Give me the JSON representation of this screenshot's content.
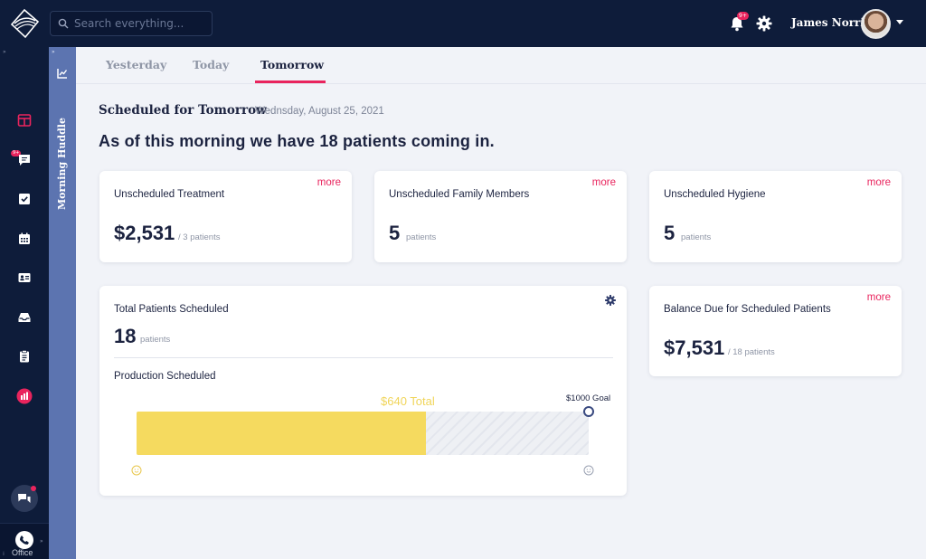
{
  "header": {
    "search_placeholder": "Search everything...",
    "notification_badge": "9+",
    "user_name": "James Norris"
  },
  "sidebar": {
    "message_badge": "9+",
    "office_label": "Office"
  },
  "huddle": {
    "label": "Morning Huddle"
  },
  "tabs": [
    {
      "label": "Yesterday"
    },
    {
      "label": "Today"
    },
    {
      "label": "Tomorrow",
      "active": true
    }
  ],
  "schedule": {
    "title": "Scheduled for Tomorrow",
    "date": "Wednsday, August 25, 2021",
    "headline": "As of this morning we have 18 patients coming in."
  },
  "cards": {
    "unscheduled_treatment": {
      "title": "Unscheduled Treatment",
      "more": "more",
      "value": "$2,531",
      "sub": "/ 3 patients"
    },
    "unscheduled_family": {
      "title": "Unscheduled Family Members",
      "more": "more",
      "value": "5",
      "sub": "patients"
    },
    "unscheduled_hygiene": {
      "title": "Unscheduled Hygiene",
      "more": "more",
      "value": "5",
      "sub": "patients"
    },
    "total_patients": {
      "title": "Total Patients Scheduled",
      "value": "18",
      "sub": "patients"
    },
    "production": {
      "title": "Production Scheduled",
      "total_label": "$640 Total",
      "goal_label": "$1000 Goal",
      "total": 640,
      "goal": 1000
    },
    "balance_due": {
      "title": "Balance Due for Scheduled Patients",
      "more": "more",
      "value": "$7,531",
      "sub": "/ 18 patients"
    }
  },
  "colors": {
    "navy": "#0e1c3a",
    "accent_pink": "#e9245d",
    "huddle_blue": "#5c74b0",
    "bar_yellow": "#f5da5f"
  },
  "icons": [
    "app-logo-icon",
    "search-icon",
    "bell-icon",
    "gear-icon",
    "dashboard-icon",
    "messages-icon",
    "checklist-icon",
    "calendar-icon",
    "contact-card-icon",
    "inbox-icon",
    "clipboard-icon",
    "analytics-icon",
    "chat-icon",
    "phone-icon",
    "chart-icon",
    "smile-icon"
  ]
}
